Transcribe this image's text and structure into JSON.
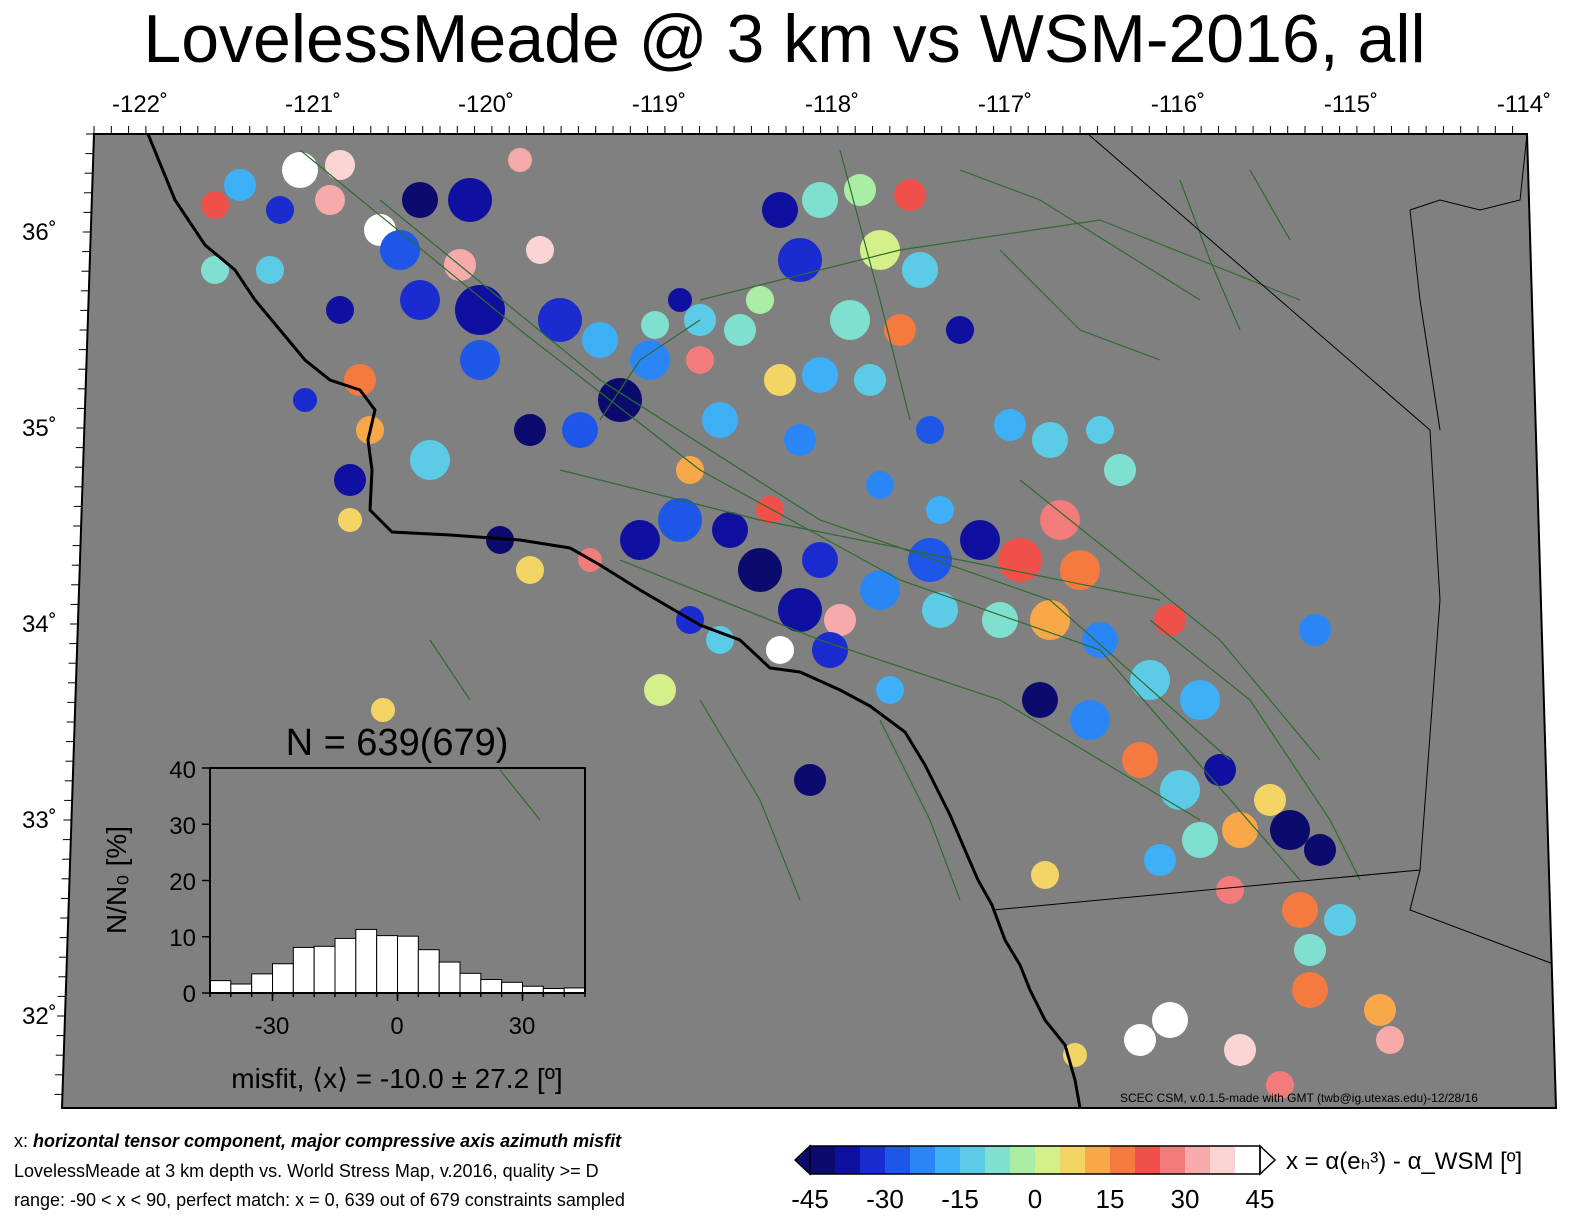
{
  "title": "LovelessMeade @ 3 km vs WSM-2016, all",
  "map": {
    "lon_ticks": [
      "-122˚",
      "-121˚",
      "-120˚",
      "-119˚",
      "-118˚",
      "-117˚",
      "-116˚",
      "-115˚",
      "-114˚"
    ],
    "lat_ticks": [
      "36˚",
      "35˚",
      "34˚",
      "33˚",
      "32˚"
    ],
    "background_color": "#808080",
    "coast_color": "#000000",
    "fault_color": "#2e6b2e"
  },
  "histogram": {
    "title": "N = 639(679)",
    "ylabel": "N/N₀ [%]",
    "xlabel": "misfit, ⟨x⟩ = -10.0 ± 27.2 [º]",
    "yticks": [
      "0",
      "10",
      "20",
      "30",
      "40"
    ],
    "xticks": [
      "-30",
      "0",
      "30"
    ]
  },
  "chart_data": {
    "type": "bar",
    "title": "N = 639(679)",
    "xlabel": "misfit, ⟨x⟩ = -10.0 ± 27.2 [º]",
    "ylabel": "N/N₀ [%]",
    "xlim": [
      -45,
      45
    ],
    "ylim": [
      0,
      40
    ],
    "bin_width": 5,
    "bin_centers": [
      -42.5,
      -37.5,
      -32.5,
      -27.5,
      -22.5,
      -17.5,
      -12.5,
      -7.5,
      -2.5,
      2.5,
      7.5,
      12.5,
      17.5,
      22.5,
      27.5,
      32.5,
      37.5,
      42.5
    ],
    "values": [
      2.2,
      1.6,
      3.4,
      5.2,
      8.1,
      8.3,
      9.7,
      11.3,
      10.2,
      10.1,
      7.7,
      5.5,
      3.5,
      2.4,
      1.9,
      1.2,
      0.8,
      0.9
    ]
  },
  "colorbar": {
    "ticks": [
      "-45",
      "-30",
      "-15",
      "0",
      "15",
      "30",
      "45"
    ],
    "label": "x = α(eₕ³) - α_WSM [º]",
    "colors": [
      "#0b0b6e",
      "#1010a0",
      "#1a2bd0",
      "#1e56e8",
      "#2b86f5",
      "#3db0f7",
      "#5ccce6",
      "#80e0cf",
      "#aaeea6",
      "#d4f08a",
      "#f3d565",
      "#f8a848",
      "#f57a40",
      "#f0504a",
      "#f27b7b",
      "#f7aaaa",
      "#fbd4d4",
      "#ffffff"
    ]
  },
  "credit": "SCEC CSM, v.0.1.5-made with GMT (twb@ig.utexas.edu)-12/28/16",
  "caption": {
    "line1_prefix": "x: ",
    "line1_bold": "horizontal tensor component, major compressive axis azimuth misfit",
    "line2": "LovelessMeade at 3 km depth vs.  World Stress Map, v.2016, quality >= D",
    "line3": "range: -90 < x < 90, perfect match: x = 0, 639 out of 679 constraints sampled"
  }
}
